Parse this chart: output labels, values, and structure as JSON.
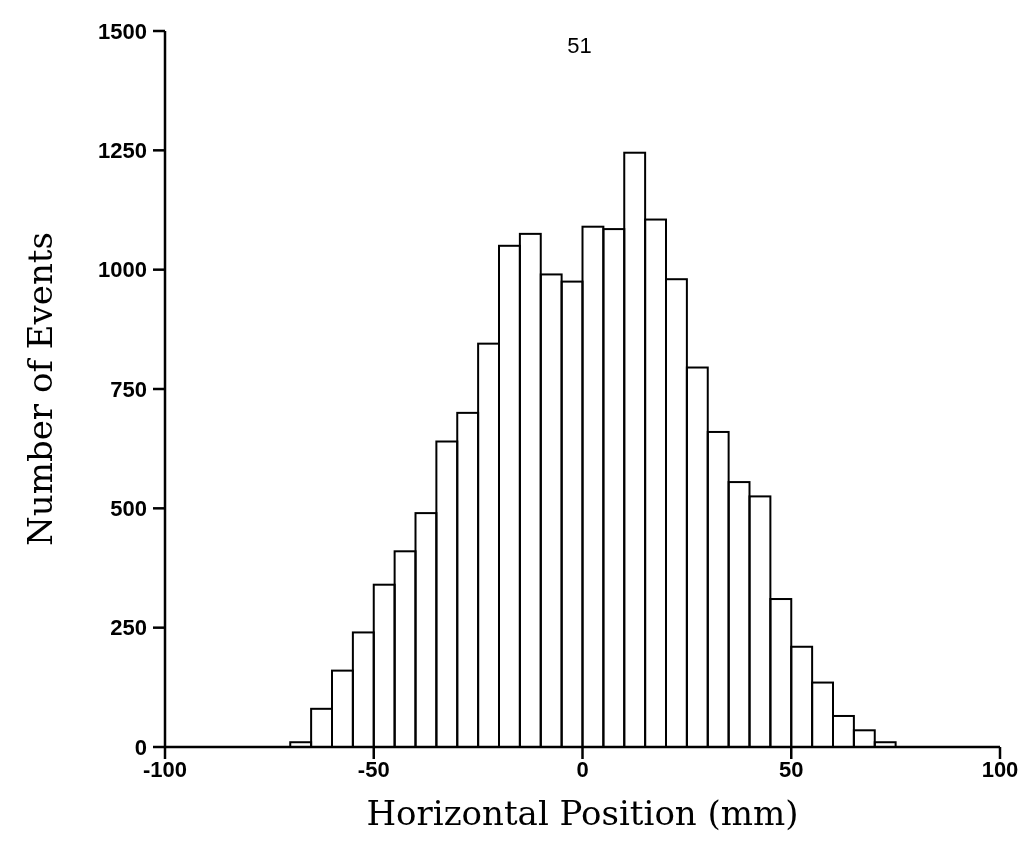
{
  "chart_data": {
    "type": "histogram",
    "xlabel": "Horizontal Position (mm)",
    "ylabel": "Number of Events",
    "annotations": [
      "51"
    ],
    "bins": [
      -70,
      -65,
      -60,
      -55,
      -50,
      -45,
      -40,
      -35,
      -30,
      -25,
      -20,
      -15,
      -10,
      -5,
      0,
      5,
      10,
      15,
      20,
      25,
      30,
      35,
      40,
      45,
      50,
      55,
      60,
      65,
      70,
      75
    ],
    "values": [
      10,
      80,
      160,
      240,
      340,
      410,
      490,
      640,
      700,
      845,
      1050,
      1075,
      990,
      975,
      1090,
      1085,
      1245,
      1105,
      980,
      795,
      660,
      555,
      525,
      310,
      210,
      135,
      65,
      35,
      10
    ],
    "color": "#000000",
    "xlim": [
      -100,
      100
    ],
    "xticks": [
      -100,
      -50,
      0,
      50,
      100
    ],
    "ylim": [
      0,
      1500
    ],
    "yticks": [
      0,
      250,
      500,
      750,
      1000,
      1250,
      1500
    ],
    "grid": false
  }
}
